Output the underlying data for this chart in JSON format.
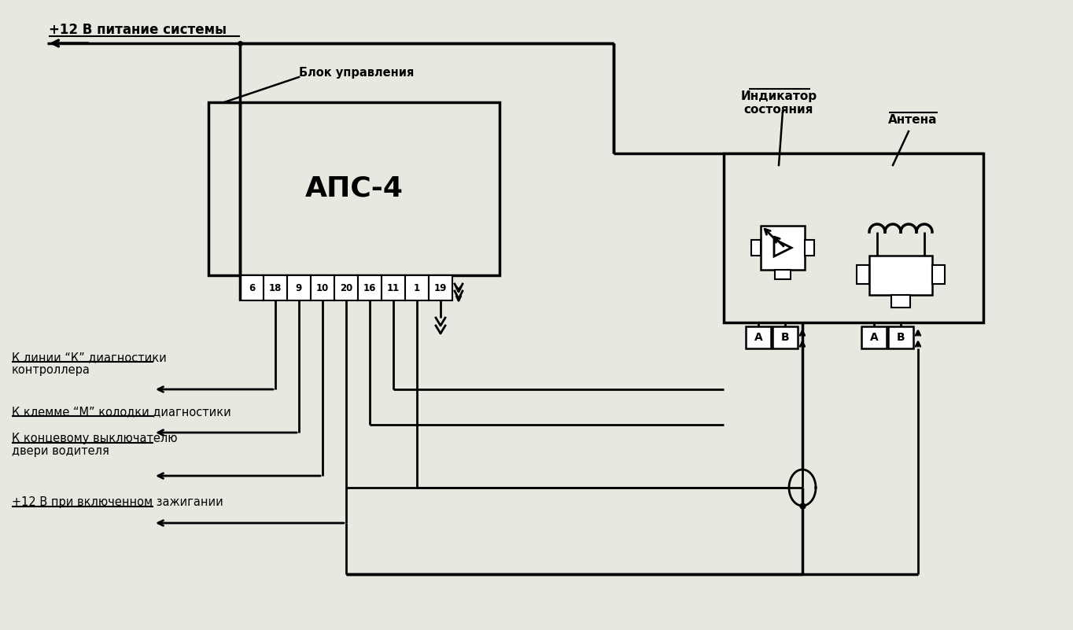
{
  "bg_color": "#e8e8e0",
  "line_color": "#000000",
  "title_text": "+12 В питание системы",
  "block_label": "АПС-4",
  "block_upravleniya": "Блок управления",
  "indicator_label": "Индикатор\nсостояния",
  "antenna_label": "Антена",
  "label1_line1": "К линии “К” диагностики",
  "label1_line2": "контроллера",
  "label2": "К клемме “М” колодки диагностики",
  "label3_line1": "К концевому выключателю",
  "label3_line2": "двери водителя",
  "label4": "+12 В при включенном зажигании",
  "pin_labels": [
    "6",
    "18",
    "9",
    "10",
    "20",
    "16",
    "11",
    "1",
    "19"
  ],
  "fig_width": 13.64,
  "fig_height": 8.01,
  "dpi": 100
}
